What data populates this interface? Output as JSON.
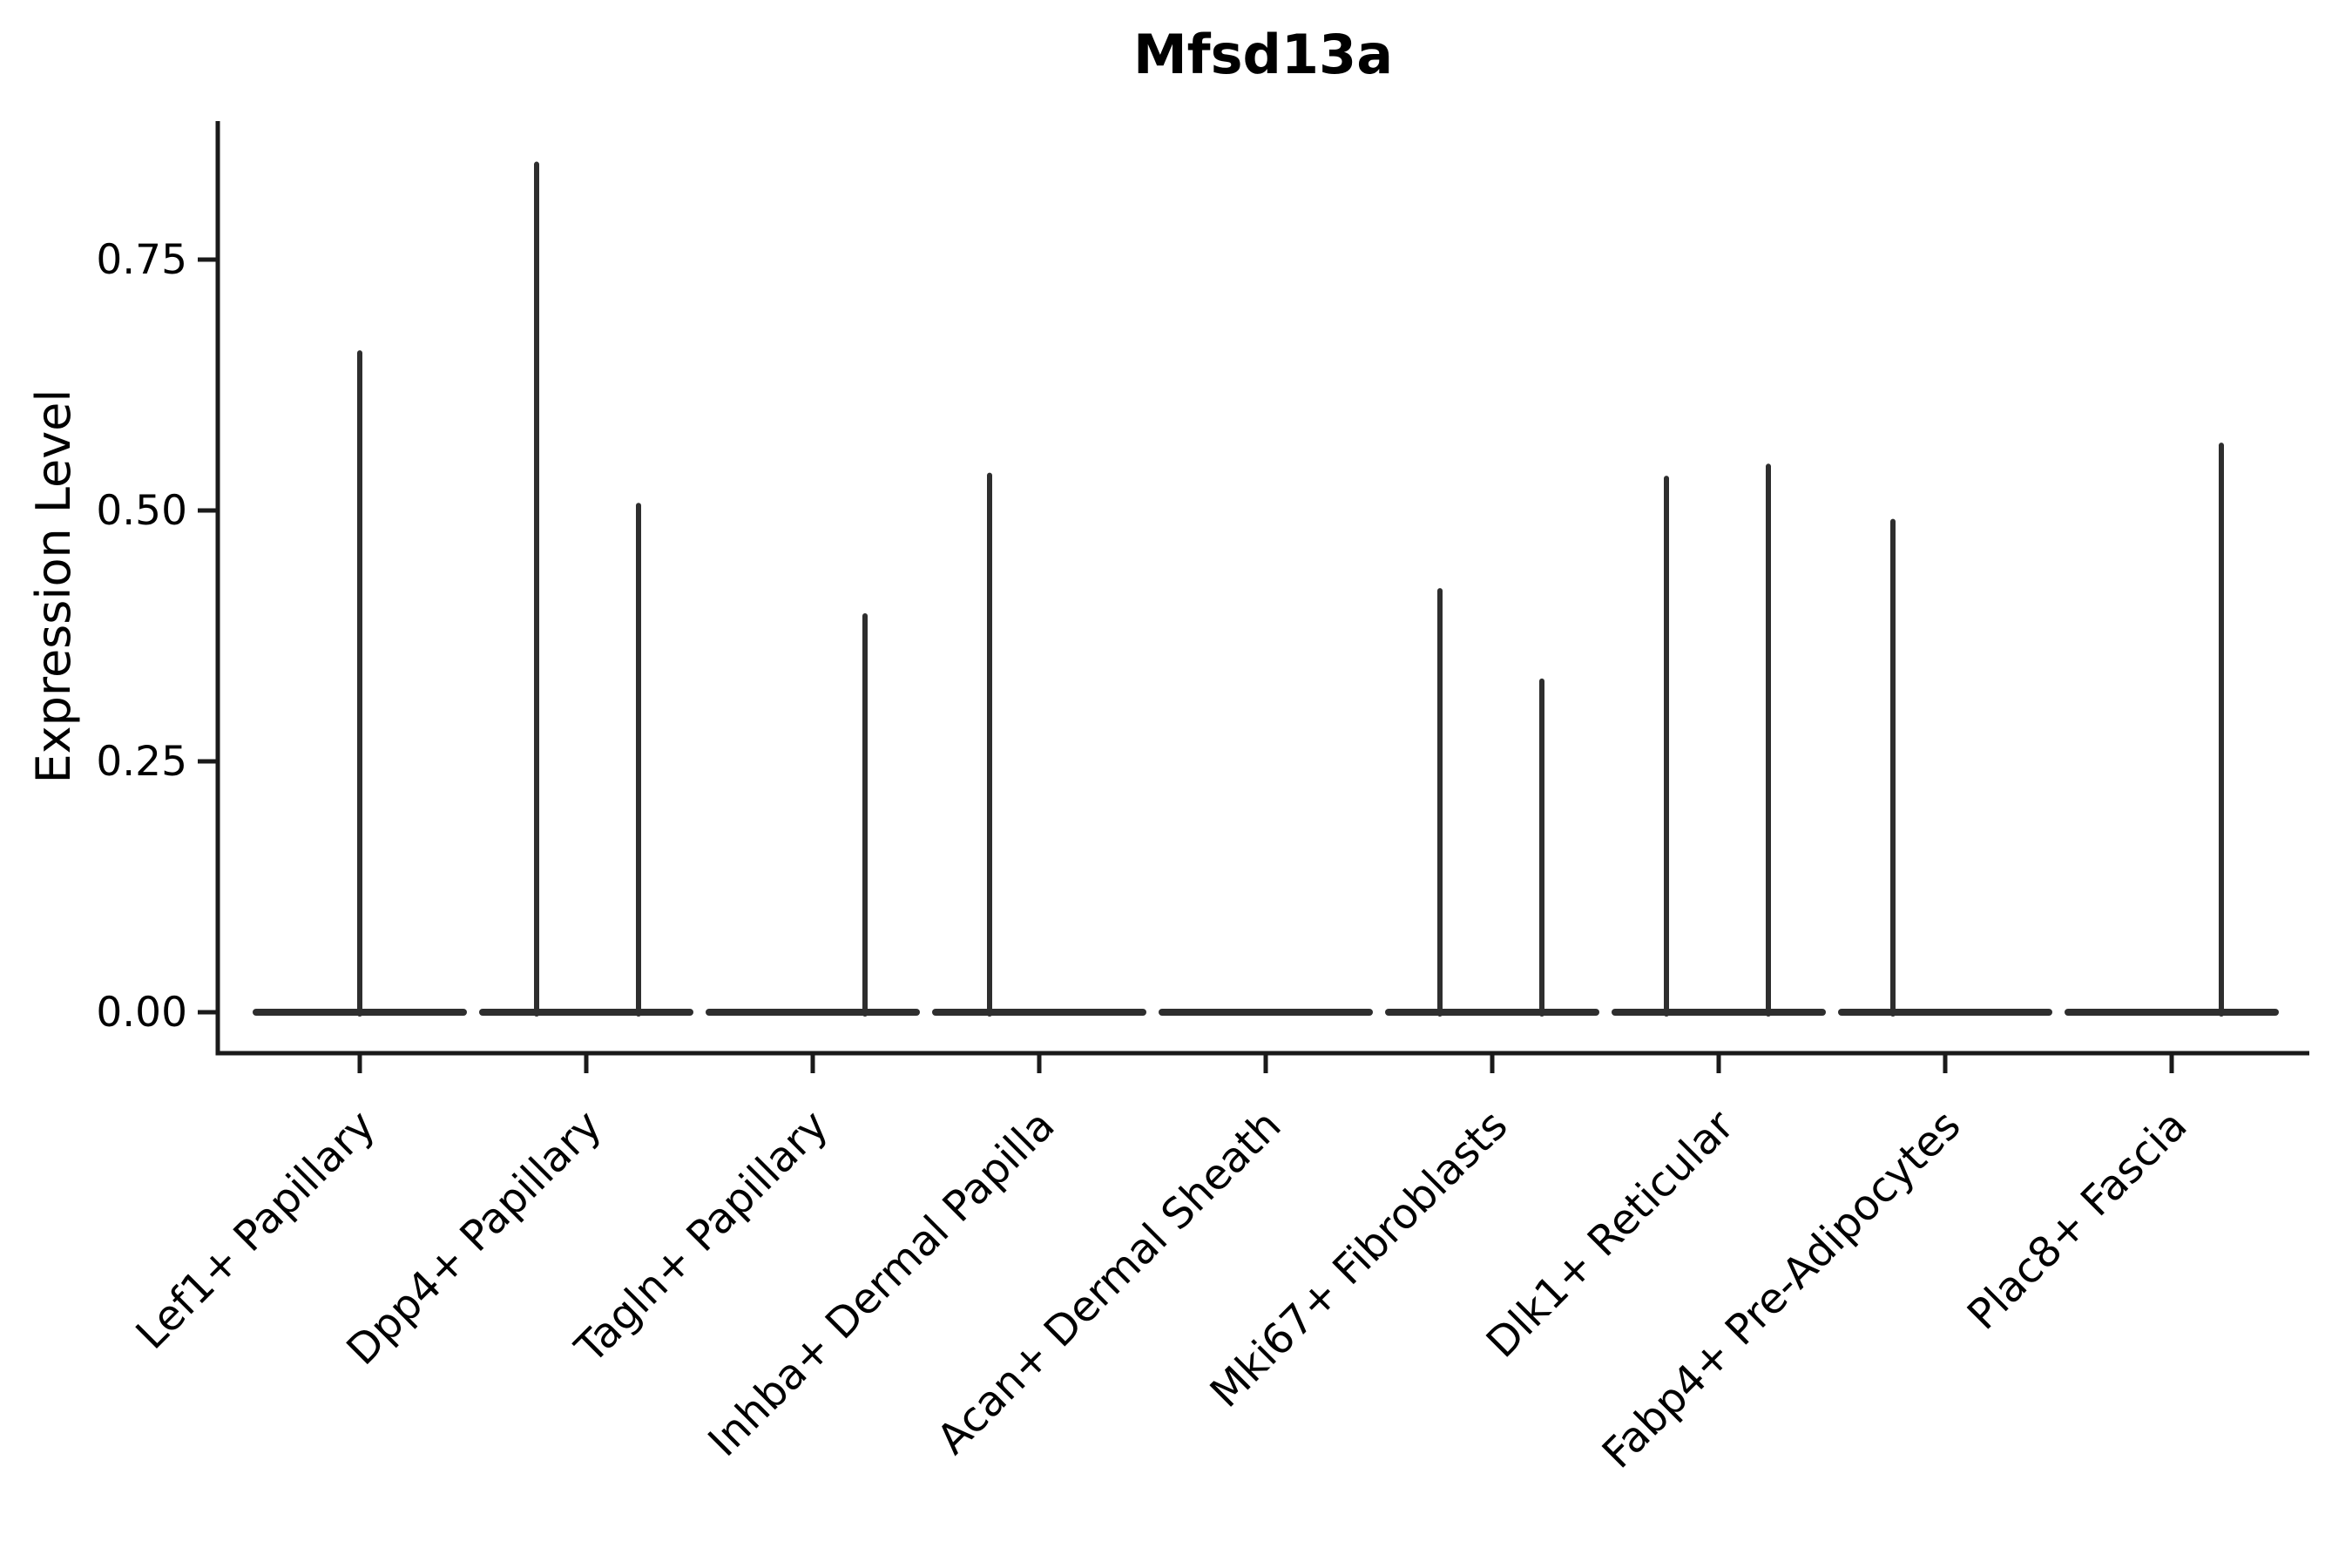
{
  "chart_data": {
    "type": "violin",
    "title": "Mfsd13a",
    "ylabel": "Expression Level",
    "xlabel": "",
    "grid": false,
    "legend": false,
    "background": "#ffffff",
    "categories": [
      "Lef1+ Papillary",
      "Dpp4+ Papillary",
      "Tagln+ Papillary",
      "Inhba+ Dermal Papilla",
      "Acan+ Dermal Sheath",
      "Mki67+ Fibroblasts",
      "Dlk1+ Reticular",
      "Fabp4+ Pre-Adipocytes",
      "Plac8+ Fascia"
    ],
    "ytick_labels": [
      "0.00",
      "0.25",
      "0.50",
      "0.75"
    ],
    "ytick_values": [
      0.0,
      0.25,
      0.5,
      0.75
    ],
    "ylim": [
      -0.041,
      0.888
    ],
    "violin_body": {
      "value": 0.0,
      "halfwidth_frac": 0.458
    },
    "series": [
      {
        "name": "Lef1+ Papillary",
        "spikes": [
          {
            "offset": 0.0,
            "value": 0.657
          }
        ]
      },
      {
        "name": "Dpp4+ Papillary",
        "spikes": [
          {
            "offset": -0.22,
            "value": 0.845
          },
          {
            "offset": 0.23,
            "value": 0.505
          }
        ]
      },
      {
        "name": "Tagln+ Papillary",
        "spikes": [
          {
            "offset": 0.23,
            "value": 0.395
          }
        ]
      },
      {
        "name": "Inhba+ Dermal Papilla",
        "spikes": [
          {
            "offset": -0.22,
            "value": 0.535
          }
        ]
      },
      {
        "name": "Acan+ Dermal Sheath",
        "spikes": []
      },
      {
        "name": "Mki67+ Fibroblasts",
        "spikes": [
          {
            "offset": -0.23,
            "value": 0.42
          },
          {
            "offset": 0.22,
            "value": 0.33
          }
        ]
      },
      {
        "name": "Dlk1+ Reticular",
        "spikes": [
          {
            "offset": -0.23,
            "value": 0.532
          },
          {
            "offset": 0.22,
            "value": 0.544
          }
        ]
      },
      {
        "name": "Fabp4+ Pre-Adipocytes",
        "spikes": [
          {
            "offset": -0.23,
            "value": 0.489
          }
        ]
      },
      {
        "name": "Plac8+ Fascia",
        "spikes": [
          {
            "offset": 0.22,
            "value": 0.565
          }
        ]
      }
    ],
    "colors": {
      "violin_stroke": "#2e2e2e",
      "axis": "#1a1a1a",
      "text": "#000000"
    }
  }
}
